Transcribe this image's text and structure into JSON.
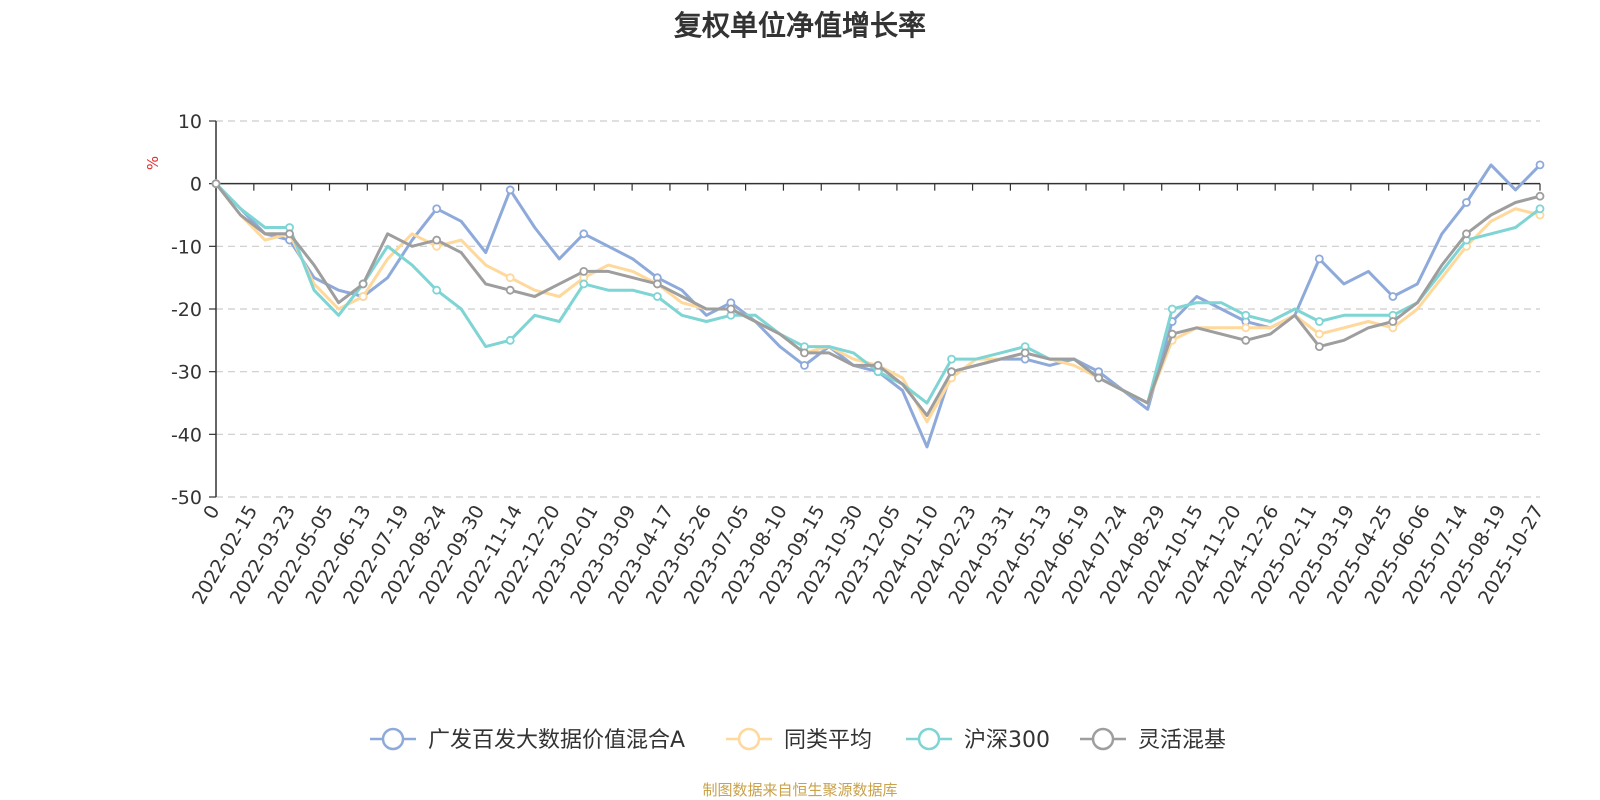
{
  "chart_data": {
    "type": "line",
    "title": "复权单位净值增长率",
    "ylabel": "%",
    "xlabel": "",
    "ylim": [
      -50,
      10
    ],
    "yticks": [
      10,
      0,
      -10,
      -20,
      -30,
      -40,
      -50
    ],
    "x_tick_labels": [
      "0",
      "2022-02-15",
      "2022-03-23",
      "2022-05-05",
      "2022-06-13",
      "2022-07-19",
      "2022-08-24",
      "2022-09-30",
      "2022-11-14",
      "2022-12-20",
      "2023-02-01",
      "2023-03-09",
      "2023-04-17",
      "2023-05-26",
      "2023-07-05",
      "2023-08-10",
      "2023-09-15",
      "2023-10-30",
      "2023-12-05",
      "2024-01-10",
      "2024-02-23",
      "2024-03-31",
      "2024-05-13",
      "2024-06-19",
      "2024-07-24",
      "2024-08-29",
      "2024-10-15",
      "2024-11-20",
      "2024-12-26",
      "2025-02-11",
      "2025-03-19",
      "2025-04-25",
      "2025-06-06",
      "2025-07-14",
      "2025-08-19",
      "2025-10-27"
    ],
    "grid": true,
    "legend_position": "bottom",
    "series": [
      {
        "name": "广发百发大数据价值混合A",
        "color": "#8eaadb",
        "values": [
          0,
          -4,
          -8,
          -9,
          -15,
          -17,
          -18,
          -15,
          -9,
          -4,
          -6,
          -11,
          -1,
          -7,
          -12,
          -8,
          -10,
          -12,
          -15,
          -17,
          -21,
          -19,
          -22,
          -26,
          -29,
          -26,
          -29,
          -30,
          -33,
          -42,
          -30,
          -29,
          -28,
          -28,
          -29,
          -28,
          -30,
          -33,
          -36,
          -22,
          -18,
          -20,
          -22,
          -23,
          -21,
          -12,
          -16,
          -14,
          -18,
          -16,
          -8,
          -3,
          3,
          -1,
          3
        ]
      },
      {
        "name": "同类平均",
        "color": "#ffd89b",
        "values": [
          0,
          -5,
          -9,
          -8,
          -16,
          -20,
          -18,
          -12,
          -8,
          -10,
          -9,
          -13,
          -15,
          -17,
          -18,
          -15,
          -13,
          -14,
          -16,
          -19,
          -20,
          -20,
          -22,
          -24,
          -27,
          -26,
          -28,
          -29,
          -31,
          -38,
          -31,
          -28,
          -28,
          -27,
          -28,
          -29,
          -31,
          -33,
          -35,
          -25,
          -23,
          -23,
          -23,
          -23,
          -21,
          -24,
          -23,
          -22,
          -23,
          -20,
          -15,
          -10,
          -6,
          -4,
          -5
        ]
      },
      {
        "name": "沪深300",
        "color": "#7fd4d4",
        "values": [
          0,
          -4,
          -7,
          -7,
          -17,
          -21,
          -16,
          -10,
          -13,
          -17,
          -20,
          -26,
          -25,
          -21,
          -22,
          -16,
          -17,
          -17,
          -18,
          -21,
          -22,
          -21,
          -21,
          -24,
          -26,
          -26,
          -27,
          -30,
          -32,
          -35,
          -28,
          -28,
          -27,
          -26,
          -28,
          -28,
          -31,
          -33,
          -35,
          -20,
          -19,
          -19,
          -21,
          -22,
          -20,
          -22,
          -21,
          -21,
          -21,
          -19,
          -14,
          -9,
          -8,
          -7,
          -4
        ]
      },
      {
        "name": "灵活混基",
        "color": "#9e9e9e",
        "values": [
          0,
          -5,
          -8,
          -8,
          -13,
          -19,
          -16,
          -8,
          -10,
          -9,
          -11,
          -16,
          -17,
          -18,
          -16,
          -14,
          -14,
          -15,
          -16,
          -18,
          -20,
          -20,
          -22,
          -24,
          -27,
          -27,
          -29,
          -29,
          -32,
          -37,
          -30,
          -29,
          -28,
          -27,
          -28,
          -28,
          -31,
          -33,
          -35,
          -24,
          -23,
          -24,
          -25,
          -24,
          -21,
          -26,
          -25,
          -23,
          -22,
          -19,
          -13,
          -8,
          -5,
          -3,
          -2
        ]
      }
    ]
  },
  "source_note": "制图数据来自恒生聚源数据库"
}
